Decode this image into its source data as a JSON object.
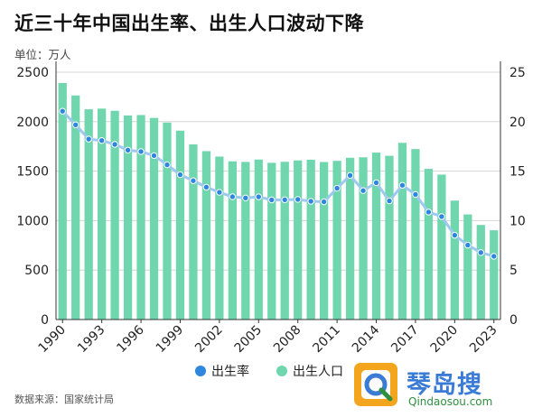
{
  "header": {
    "title": "近三十年中国出生率、出生人口波动下降",
    "unit": "单位：万人"
  },
  "footer": {
    "source": "数据来源：国家统计局"
  },
  "watermark": {
    "name": "琴岛搜",
    "url": "Qindaosou.com"
  },
  "colors": {
    "bar": "#6fd6ae",
    "line": "#9ec9ee",
    "point": "#2f86de",
    "axis": "#333333",
    "grid": "#d6d6d6"
  },
  "chart_data": {
    "type": "bar",
    "categories": [
      "1990",
      "1991",
      "1992",
      "1993",
      "1994",
      "1995",
      "1996",
      "1997",
      "1998",
      "1999",
      "2000",
      "2001",
      "2002",
      "2003",
      "2004",
      "2005",
      "2006",
      "2007",
      "2008",
      "2009",
      "2010",
      "2011",
      "2012",
      "2013",
      "2014",
      "2015",
      "2016",
      "2017",
      "2018",
      "2019",
      "2020",
      "2021",
      "2022",
      "2023"
    ],
    "x_tick_labels": [
      "1990",
      "1993",
      "1996",
      "1999",
      "2002",
      "2005",
      "2008",
      "2011",
      "2014",
      "2017",
      "2020",
      "2023"
    ],
    "series": [
      {
        "name": "出生人口",
        "type": "bar",
        "axis": "left",
        "values": [
          2391,
          2265,
          2125,
          2132,
          2110,
          2063,
          2067,
          2038,
          1991,
          1909,
          1771,
          1702,
          1647,
          1599,
          1593,
          1617,
          1584,
          1594,
          1608,
          1615,
          1592,
          1604,
          1635,
          1640,
          1687,
          1655,
          1786,
          1723,
          1523,
          1465,
          1202,
          1062,
          956,
          902
        ]
      },
      {
        "name": "出生率",
        "type": "line",
        "axis": "right",
        "values": [
          21.06,
          19.68,
          18.24,
          18.09,
          17.7,
          17.12,
          16.98,
          16.57,
          15.64,
          14.64,
          14.03,
          13.38,
          12.86,
          12.41,
          12.29,
          12.4,
          12.09,
          12.1,
          12.14,
          11.95,
          11.9,
          13.27,
          14.57,
          13.03,
          13.83,
          11.99,
          13.57,
          12.64,
          10.86,
          10.41,
          8.52,
          7.52,
          6.77,
          6.39
        ]
      }
    ],
    "y_left": {
      "ticks": [
        0,
        500,
        1000,
        1500,
        2000,
        2500
      ],
      "range": [
        0,
        2500
      ]
    },
    "y_right": {
      "ticks": [
        0,
        5,
        10,
        15,
        20,
        25
      ],
      "range": [
        0,
        25
      ]
    },
    "legend": {
      "position": "bottom"
    },
    "grid": true
  }
}
